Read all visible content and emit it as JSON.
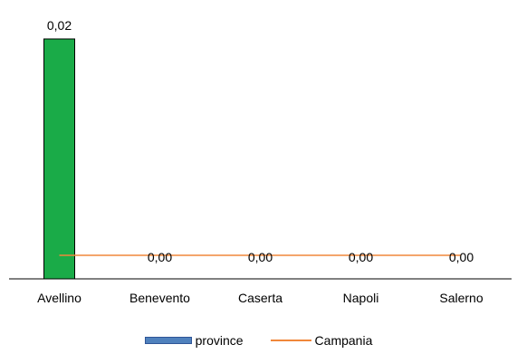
{
  "chart_data": {
    "type": "bar",
    "categories": [
      "Avellino",
      "Benevento",
      "Caserta",
      "Napoli",
      "Salerno"
    ],
    "series": [
      {
        "name": "province",
        "values": [
          0.02,
          0.0,
          0.0,
          0.0,
          0.0
        ],
        "value_labels": [
          "0,02",
          "0,00",
          "0,00",
          "0,00",
          "0,00"
        ],
        "color": "#4f81bd",
        "highlight_color": "#1aab48"
      },
      {
        "name": "Campania",
        "type": "line",
        "values": [
          0.0,
          0.0,
          0.0,
          0.0,
          0.0
        ],
        "color": "#f0873a"
      }
    ],
    "ylim": [
      0,
      0.025
    ],
    "grid": false,
    "legend_position": "bottom"
  }
}
